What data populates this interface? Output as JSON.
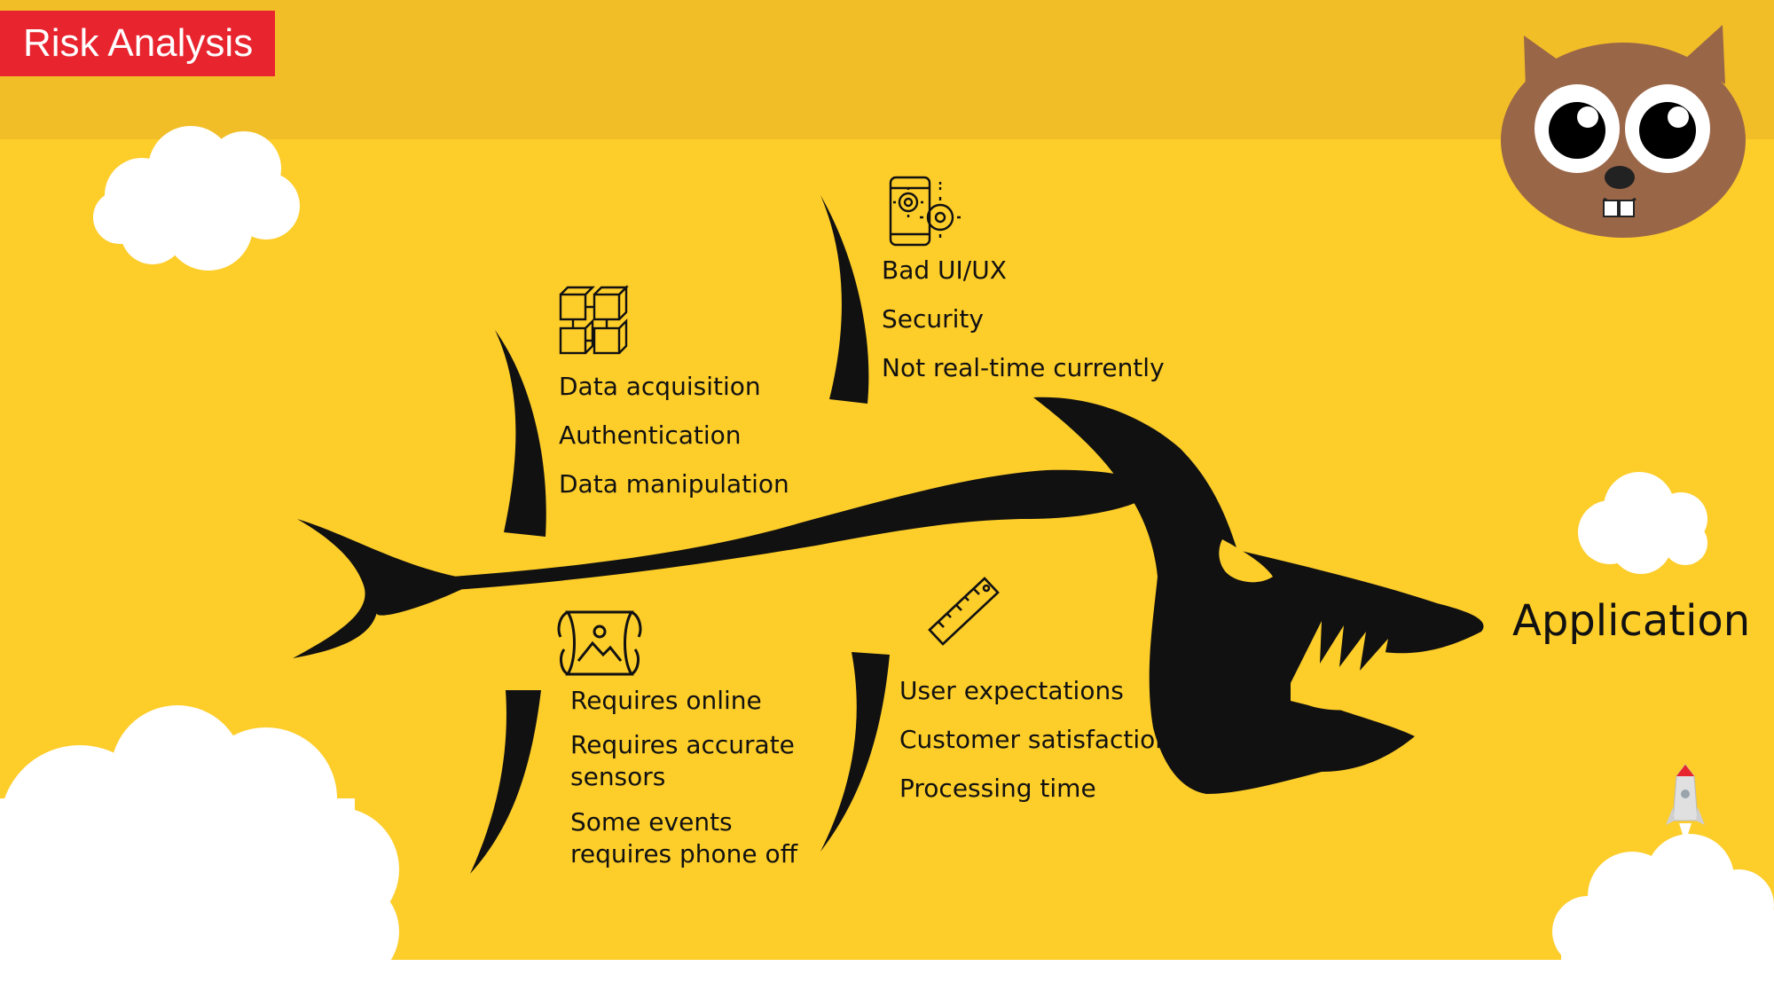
{
  "slide": {
    "title": "Risk Analysis",
    "colors": {
      "background": "#FDCD2A",
      "top_band": "#F2BE28",
      "title_box": "#E8242E",
      "fish": "#111111",
      "beaver": "#9A6648"
    }
  },
  "diagram": {
    "effect": "Application",
    "causes": [
      {
        "icon": "blocks-icon",
        "items": [
          "Data acquisition",
          "Authentication",
          "Data manipulation"
        ]
      },
      {
        "icon": "phone-gears-icon",
        "items": [
          "Bad UI/UX",
          "Security",
          "Not real-time currently"
        ]
      },
      {
        "icon": "map-icon",
        "items": [
          "Requires online",
          "Requires accurate",
          "sensors",
          "Some events",
          "requires phone off"
        ]
      },
      {
        "icon": "ruler-icon",
        "items": [
          "User expectations",
          "Customer satisfaction",
          "Processing time"
        ]
      }
    ]
  }
}
